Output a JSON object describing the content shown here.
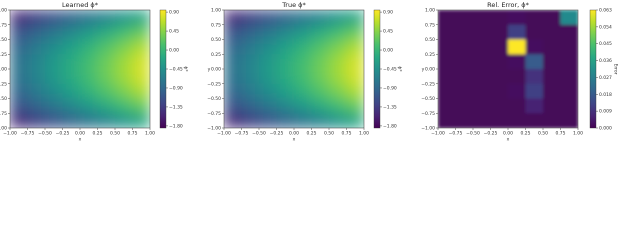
{
  "chart_data": [
    {
      "type": "heatmap",
      "title": "Learned ϕ*",
      "xlabel": "x",
      "ylabel": "y",
      "colorbar_label": "ϕ*",
      "colormap": "viridis",
      "xlim": [
        -1,
        1
      ],
      "ylim": [
        -1,
        1
      ],
      "zlim": [
        -1.85,
        0.95
      ],
      "xticks": [
        {
          "value": -1,
          "label": "−1.00"
        },
        {
          "value": -0.75,
          "label": "−0.75"
        },
        {
          "value": -0.5,
          "label": "−0.50"
        },
        {
          "value": -0.25,
          "label": "−0.25"
        },
        {
          "value": 0,
          "label": "0.00"
        },
        {
          "value": 0.25,
          "label": "0.25"
        },
        {
          "value": 0.5,
          "label": "0.50"
        },
        {
          "value": 0.75,
          "label": "0.75"
        },
        {
          "value": 1,
          "label": "1.00"
        }
      ],
      "yticks": [
        {
          "value": -1,
          "label": "−1.00"
        },
        {
          "value": -0.75,
          "label": "−0.75"
        },
        {
          "value": -0.5,
          "label": "−0.50"
        },
        {
          "value": -0.25,
          "label": "−0.25"
        },
        {
          "value": 0,
          "label": "0.00"
        },
        {
          "value": 0.25,
          "label": "0.25"
        },
        {
          "value": 0.5,
          "label": "0.50"
        },
        {
          "value": 0.75,
          "label": "0.75"
        },
        {
          "value": 1,
          "label": "1.00"
        }
      ],
      "zticks": [
        {
          "value": 0.9,
          "label": "0.90"
        },
        {
          "value": 0.45,
          "label": "0.45"
        },
        {
          "value": 0,
          "label": "0.00"
        },
        {
          "value": -0.45,
          "label": "−0.45"
        },
        {
          "value": -0.9,
          "label": "−0.90"
        },
        {
          "value": -1.35,
          "label": "−1.35"
        },
        {
          "value": -1.8,
          "label": "−1.80"
        }
      ],
      "z": [
        [
          -1.5,
          -1.32,
          -1.13,
          -0.95,
          -0.77,
          -0.59,
          -0.41,
          -0.22
        ],
        [
          -1.15,
          -0.95,
          -0.74,
          -0.54,
          -0.34,
          -0.13,
          0.07,
          0.27
        ],
        [
          -0.92,
          -0.7,
          -0.48,
          -0.27,
          -0.05,
          0.17,
          0.38,
          0.6
        ],
        [
          -0.8,
          -0.58,
          -0.35,
          -0.13,
          0.09,
          0.32,
          0.54,
          0.77
        ],
        [
          -0.8,
          -0.58,
          -0.35,
          -0.13,
          0.09,
          0.32,
          0.54,
          0.77
        ],
        [
          -0.92,
          -0.7,
          -0.48,
          -0.27,
          -0.05,
          0.17,
          0.38,
          0.6
        ],
        [
          -1.15,
          -0.95,
          -0.74,
          -0.54,
          -0.34,
          -0.13,
          0.07,
          0.27
        ],
        [
          -1.5,
          -1.32,
          -1.13,
          -0.95,
          -0.77,
          -0.59,
          -0.41,
          -0.22
        ]
      ]
    },
    {
      "type": "heatmap",
      "title": "True ϕ*",
      "xlabel": "x",
      "ylabel": "y",
      "colorbar_label": "ϕ*",
      "colormap": "viridis",
      "xlim": [
        -1,
        1
      ],
      "ylim": [
        -1,
        1
      ],
      "zlim": [
        -1.85,
        0.95
      ],
      "xticks": [
        {
          "value": -1,
          "label": "−1.00"
        },
        {
          "value": -0.75,
          "label": "−0.75"
        },
        {
          "value": -0.5,
          "label": "−0.50"
        },
        {
          "value": -0.25,
          "label": "−0.25"
        },
        {
          "value": 0,
          "label": "0.00"
        },
        {
          "value": 0.25,
          "label": "0.25"
        },
        {
          "value": 0.5,
          "label": "0.50"
        },
        {
          "value": 0.75,
          "label": "0.75"
        },
        {
          "value": 1,
          "label": "1.00"
        }
      ],
      "yticks": [
        {
          "value": -1,
          "label": "−1.00"
        },
        {
          "value": -0.75,
          "label": "−0.75"
        },
        {
          "value": -0.5,
          "label": "−0.50"
        },
        {
          "value": -0.25,
          "label": "−0.25"
        },
        {
          "value": 0,
          "label": "0.00"
        },
        {
          "value": 0.25,
          "label": "0.25"
        },
        {
          "value": 0.5,
          "label": "0.50"
        },
        {
          "value": 0.75,
          "label": "0.75"
        },
        {
          "value": 1,
          "label": "1.00"
        }
      ],
      "zticks": [
        {
          "value": 0.9,
          "label": "0.90"
        },
        {
          "value": 0.45,
          "label": "0.45"
        },
        {
          "value": 0,
          "label": "0.00"
        },
        {
          "value": -0.45,
          "label": "−0.45"
        },
        {
          "value": -0.9,
          "label": "−0.90"
        },
        {
          "value": -1.35,
          "label": "−1.35"
        },
        {
          "value": -1.8,
          "label": "−1.80"
        }
      ],
      "z": [
        [
          -1.5,
          -1.32,
          -1.13,
          -0.95,
          -0.77,
          -0.59,
          -0.41,
          -0.22
        ],
        [
          -1.15,
          -0.95,
          -0.74,
          -0.54,
          -0.34,
          -0.13,
          0.07,
          0.27
        ],
        [
          -0.92,
          -0.7,
          -0.48,
          -0.27,
          -0.05,
          0.17,
          0.38,
          0.6
        ],
        [
          -0.8,
          -0.58,
          -0.35,
          -0.13,
          0.09,
          0.32,
          0.54,
          0.77
        ],
        [
          -0.8,
          -0.58,
          -0.35,
          -0.13,
          0.09,
          0.32,
          0.54,
          0.77
        ],
        [
          -0.92,
          -0.7,
          -0.48,
          -0.27,
          -0.05,
          0.17,
          0.38,
          0.6
        ],
        [
          -1.15,
          -0.95,
          -0.74,
          -0.54,
          -0.34,
          -0.13,
          0.07,
          0.27
        ],
        [
          -1.5,
          -1.32,
          -1.13,
          -0.95,
          -0.77,
          -0.59,
          -0.41,
          -0.22
        ]
      ]
    },
    {
      "type": "heatmap",
      "title": "Rel. Error, ϕ*",
      "xlabel": "x",
      "ylabel": "y",
      "colorbar_label": "Error",
      "colormap": "viridis",
      "xlim": [
        -1,
        1
      ],
      "ylim": [
        -1,
        1
      ],
      "zlim": [
        0,
        0.063
      ],
      "xticks": [
        {
          "value": -1,
          "label": "−1.00"
        },
        {
          "value": -0.75,
          "label": "−0.75"
        },
        {
          "value": -0.5,
          "label": "−0.50"
        },
        {
          "value": -0.25,
          "label": "−0.25"
        },
        {
          "value": 0,
          "label": "0.00"
        },
        {
          "value": 0.25,
          "label": "0.25"
        },
        {
          "value": 0.5,
          "label": "0.50"
        },
        {
          "value": 0.75,
          "label": "0.75"
        },
        {
          "value": 1,
          "label": "1.00"
        }
      ],
      "yticks": [
        {
          "value": -1,
          "label": "−1.00"
        },
        {
          "value": -0.75,
          "label": "−0.75"
        },
        {
          "value": -0.5,
          "label": "−0.50"
        },
        {
          "value": -0.25,
          "label": "−0.25"
        },
        {
          "value": 0,
          "label": "0.00"
        },
        {
          "value": 0.25,
          "label": "0.25"
        },
        {
          "value": 0.5,
          "label": "0.50"
        },
        {
          "value": 0.75,
          "label": "0.75"
        },
        {
          "value": 1,
          "label": "1.00"
        }
      ],
      "zticks": [
        {
          "value": 0.063,
          "label": "0.063"
        },
        {
          "value": 0.054,
          "label": "0.054"
        },
        {
          "value": 0.045,
          "label": "0.045"
        },
        {
          "value": 0.036,
          "label": "0.036"
        },
        {
          "value": 0.027,
          "label": "0.027"
        },
        {
          "value": 0.018,
          "label": "0.018"
        },
        {
          "value": 0.009,
          "label": "0.009"
        },
        {
          "value": 0,
          "label": "0.000"
        }
      ],
      "z": [
        [
          0.001,
          0.001,
          0.001,
          0.001,
          0.002,
          0.001,
          0.001,
          0.03
        ],
        [
          0.001,
          0.001,
          0.001,
          0.001,
          0.012,
          0.001,
          0.001,
          0.001
        ],
        [
          0.001,
          0.001,
          0.001,
          0.001,
          0.063,
          0.002,
          0.001,
          0.001
        ],
        [
          0.001,
          0.001,
          0.001,
          0.001,
          0.002,
          0.018,
          0.001,
          0.001
        ],
        [
          0.001,
          0.001,
          0.001,
          0.001,
          0.001,
          0.009,
          0.001,
          0.001
        ],
        [
          0.001,
          0.001,
          0.001,
          0.001,
          0.002,
          0.012,
          0.001,
          0.001
        ],
        [
          0.001,
          0.001,
          0.001,
          0.001,
          0.001,
          0.006,
          0.001,
          0.001
        ],
        [
          0.001,
          0.001,
          0.001,
          0.001,
          0.001,
          0.001,
          0.001,
          0.001
        ]
      ]
    }
  ]
}
